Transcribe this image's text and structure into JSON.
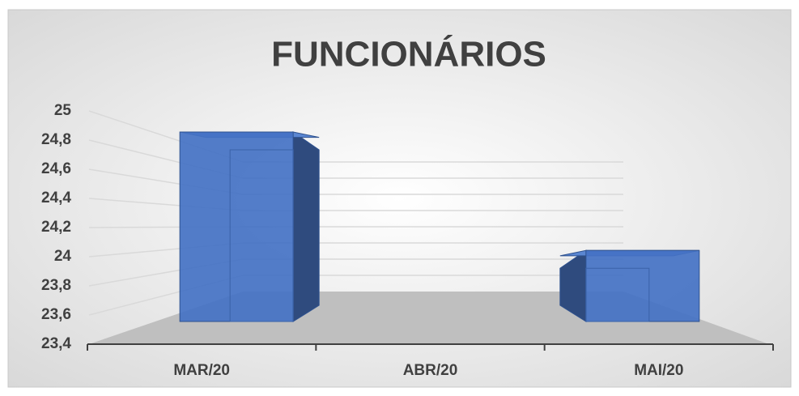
{
  "chart_data": {
    "type": "bar3d",
    "title": "FUNCIONÁRIOS",
    "categories": [
      "MAR/20",
      "ABR/20",
      "MAI/20"
    ],
    "values": [
      25,
      null,
      24
    ],
    "color": "#4472c4",
    "ylim": [
      23.4,
      25
    ],
    "yticks": [
      {
        "value": 23.4,
        "label": "23,4"
      },
      {
        "value": 23.6,
        "label": "23,6"
      },
      {
        "value": 23.8,
        "label": "23,8"
      },
      24,
      {
        "value": 24.2,
        "label": "24,2"
      },
      {
        "value": 24.4,
        "label": "24,4"
      },
      {
        "value": 24.6,
        "label": "24,6"
      },
      {
        "value": 24.8,
        "label": "24,8"
      },
      25
    ],
    "grid": true
  }
}
